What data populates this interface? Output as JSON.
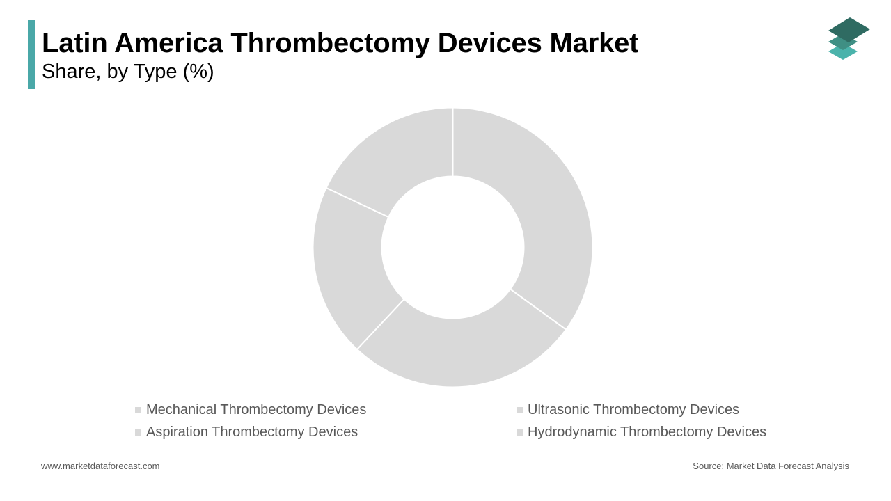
{
  "header": {
    "title": "Latin America Thrombectomy Devices Market",
    "subtitle": "Share, by Type (%)",
    "accent_color": "#4aa8a8"
  },
  "logo": {
    "icon": "stacked-layers-icon",
    "colors": [
      "#2f6b62",
      "#3f8f84",
      "#4bb3ab"
    ]
  },
  "chart_data": {
    "type": "pie",
    "donut": true,
    "title": "",
    "categories": [
      "Mechanical Thrombectomy Devices",
      "Ultrasonic Thrombectomy Devices",
      "Aspiration Thrombectomy Devices",
      "Hydrodynamic Thrombectomy Devices"
    ],
    "values": [
      35,
      27,
      20,
      18
    ],
    "slice_color": "#d9d9d9",
    "separator_color": "#ffffff",
    "legend_position": "bottom"
  },
  "footer": {
    "website": "www.marketdataforecast.com",
    "source": "Source: Market Data Forecast Analysis"
  }
}
